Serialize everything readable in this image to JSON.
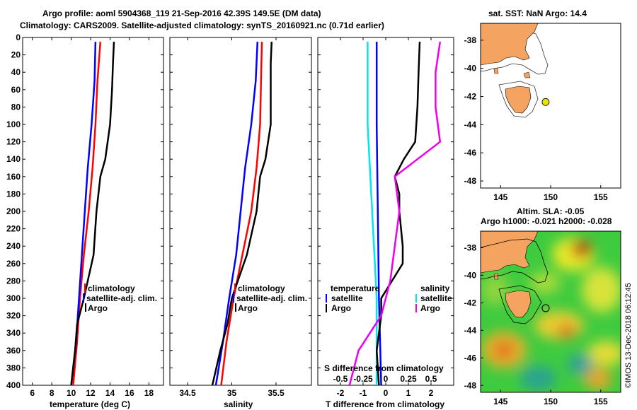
{
  "header": {
    "title_line1": "Argo profile: aoml 5904368_119 21-Sep-2016 42.39S 149.5E (DM data)",
    "title_line2": "Climatology: CARS2009. Satellite-adjusted climatology: synTS_20160921.nc (0.71d earlier)"
  },
  "map_top": {
    "title": "sat. SST: NaN Argo: 14.4"
  },
  "map_bottom": {
    "title_line1": "Altim. SLA: -0.05",
    "title_line2": "Argo h1000: -0.021 h2000: -0.028"
  },
  "credit": "©IMOS 13-Dec-2018 06:12:45",
  "colors": {
    "climatology": "#ff0000",
    "satellite": "#0000ff",
    "argo": "#000000",
    "s_satellite": "#00e5ee",
    "s_argo": "#ee00ee",
    "land": "#f4a460",
    "marker": "#e6e600"
  },
  "chart_data": [
    {
      "type": "line",
      "name": "temperature",
      "xlabel": "temperature (deg C)",
      "ylabel": "depth",
      "xlim": [
        5,
        19.5
      ],
      "ylim": [
        400,
        0
      ],
      "xticks": [
        6,
        8,
        10,
        12,
        14,
        16,
        18
      ],
      "yticks": [
        0,
        20,
        40,
        60,
        80,
        100,
        120,
        140,
        160,
        180,
        200,
        220,
        240,
        260,
        280,
        300,
        320,
        340,
        360,
        380,
        400
      ],
      "legend": [
        "climatology",
        "satellite-adj. clim.",
        "Argo"
      ],
      "series": [
        {
          "name": "climatology",
          "color": "#ff0000",
          "depth": [
            5,
            50,
            100,
            150,
            200,
            250,
            300,
            350,
            400
          ],
          "values": [
            13.0,
            12.7,
            12.5,
            12.2,
            11.8,
            11.3,
            10.9,
            10.6,
            10.2
          ]
        },
        {
          "name": "satellite",
          "color": "#0000ff",
          "depth": [
            5,
            50,
            100,
            150,
            200,
            250,
            300,
            350,
            400
          ],
          "values": [
            12.5,
            12.4,
            12.1,
            11.7,
            11.4,
            11.1,
            10.8,
            10.5,
            10.0
          ]
        },
        {
          "name": "Argo",
          "color": "#000000",
          "depth": [
            5,
            30,
            60,
            100,
            140,
            160,
            200,
            250,
            300,
            330,
            360,
            400
          ],
          "values": [
            14.4,
            14.3,
            14.2,
            14.0,
            13.5,
            13.0,
            12.6,
            12.3,
            11.3,
            10.6,
            10.4,
            10.0
          ]
        }
      ]
    },
    {
      "type": "line",
      "name": "salinity",
      "xlabel": "salinity",
      "ylabel": "depth",
      "xlim": [
        34.3,
        35.9
      ],
      "ylim": [
        400,
        0
      ],
      "xticks": [
        34.5,
        35,
        35.5
      ],
      "legend": [
        "climatology",
        "satellite-adj. clim.",
        "Argo"
      ],
      "series": [
        {
          "name": "climatology",
          "color": "#ff0000",
          "depth": [
            5,
            50,
            100,
            150,
            200,
            250,
            300,
            350,
            400
          ],
          "values": [
            35.34,
            35.33,
            35.32,
            35.28,
            35.22,
            35.12,
            35.02,
            34.94,
            34.88
          ]
        },
        {
          "name": "satellite",
          "color": "#0000ff",
          "depth": [
            5,
            50,
            100,
            150,
            200,
            250,
            300,
            350,
            400
          ],
          "values": [
            35.29,
            35.27,
            35.22,
            35.15,
            35.1,
            35.05,
            34.97,
            34.9,
            34.82
          ]
        },
        {
          "name": "Argo",
          "color": "#000000",
          "depth": [
            5,
            30,
            60,
            100,
            140,
            160,
            200,
            250,
            300,
            330,
            360,
            400
          ],
          "values": [
            35.45,
            35.44,
            35.44,
            35.44,
            35.38,
            35.32,
            35.28,
            35.17,
            35.0,
            34.95,
            34.87,
            34.78
          ]
        }
      ]
    },
    {
      "type": "line",
      "name": "difference",
      "xlabel": "T difference from climatology",
      "xlabel2": "S difference from climatology",
      "ylabel": "depth",
      "xlim": [
        -3,
        3
      ],
      "ylim": [
        400,
        0
      ],
      "xticks": [
        -2,
        -1,
        0,
        1,
        2
      ],
      "xticks_s": [
        -0.5,
        -0.25,
        0,
        0.25,
        0.5
      ],
      "legend_temperature_title": "temperature",
      "legend_salinity_title": "salinity",
      "legend": [
        "satellite",
        "Argo"
      ],
      "series": [
        {
          "name": "T satellite",
          "color": "#0000ff",
          "depth": [
            5,
            100,
            200,
            300,
            400
          ],
          "values": [
            -0.4,
            -0.4,
            -0.35,
            -0.3,
            -0.2
          ]
        },
        {
          "name": "S satellite",
          "color": "#00e5ee",
          "depth": [
            5,
            100,
            200,
            300,
            400
          ],
          "values": [
            -0.2,
            -0.2,
            -0.15,
            -0.1,
            -0.1
          ]
        },
        {
          "name": "T Argo",
          "color": "#000000",
          "depth": [
            5,
            40,
            80,
            120,
            140,
            160,
            180,
            200,
            240,
            260,
            300,
            320,
            360,
            400
          ],
          "values": [
            1.5,
            1.45,
            1.4,
            1.3,
            0.8,
            0.4,
            0.6,
            0.6,
            0.75,
            0.75,
            -0.2,
            -0.2,
            -0.4,
            -0.3
          ]
        },
        {
          "name": "S Argo",
          "color": "#ee00ee",
          "depth": [
            5,
            40,
            80,
            120,
            160,
            200,
            240,
            280,
            320,
            360,
            400
          ],
          "values": [
            0.6,
            0.55,
            0.55,
            0.6,
            0.1,
            0.15,
            0.1,
            0.05,
            -0.05,
            -0.3,
            -0.4
          ]
        }
      ]
    },
    {
      "type": "scatter",
      "name": "location map",
      "xlim": [
        143,
        157
      ],
      "ylim": [
        -48.5,
        -36.8
      ],
      "xticks": [
        145,
        150,
        155
      ],
      "yticks": [
        -38,
        -40,
        -42,
        -44,
        -46,
        -48
      ],
      "point": {
        "lon": 149.5,
        "lat": -42.39
      }
    },
    {
      "type": "heatmap",
      "name": "SLA map",
      "xlim": [
        143,
        157
      ],
      "ylim": [
        -48.5,
        -36.8
      ],
      "xticks": [
        145,
        150,
        155
      ],
      "yticks": [
        -38,
        -40,
        -42,
        -44,
        -46,
        -48
      ],
      "point": {
        "lon": 149.5,
        "lat": -42.39
      }
    }
  ]
}
